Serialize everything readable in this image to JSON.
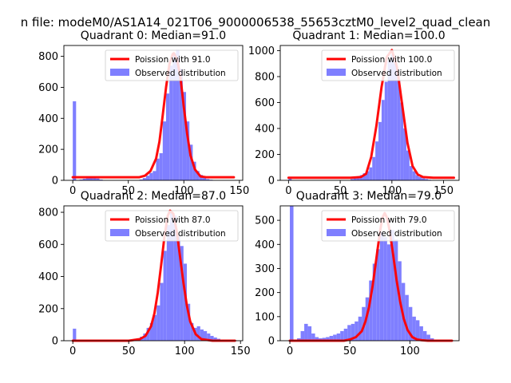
{
  "figure_title": "n file: modeM0/AS1A14_021T06_9000006538_55653cztM0_level2_quad_clean",
  "colors": {
    "fit": "#ff0000",
    "hist": "#7f7fff",
    "axis": "#000000"
  },
  "chart_data": [
    {
      "type": "bar",
      "title": "Quadrant 0: Median=91.0",
      "xlim": [
        -8,
        153
      ],
      "ylim": [
        0,
        870
      ],
      "xticks": [
        0,
        50,
        100,
        150
      ],
      "yticks": [
        0,
        200,
        400,
        600,
        800
      ],
      "legend": [
        "Poission with 91.0",
        "Observed distribution"
      ],
      "legend_position": "top-right",
      "bin_width": 3,
      "hist": {
        "x": [
          0,
          6,
          9,
          12,
          15,
          18,
          21,
          24,
          60,
          63,
          66,
          69,
          72,
          75,
          78,
          81,
          84,
          87,
          90,
          93,
          96,
          99,
          102,
          105,
          108,
          111,
          114,
          117,
          120,
          123
        ],
        "values": [
          510,
          5,
          10,
          18,
          22,
          20,
          12,
          5,
          5,
          15,
          30,
          48,
          60,
          140,
          175,
          380,
          560,
          740,
          820,
          840,
          720,
          570,
          380,
          230,
          120,
          60,
          35,
          18,
          8,
          4
        ]
      },
      "fit": {
        "mu": 91,
        "x": [
          0,
          20,
          50,
          60,
          65,
          70,
          75,
          78,
          81,
          84,
          87,
          90,
          91,
          94,
          97,
          100,
          103,
          106,
          110,
          115,
          120,
          130,
          145
        ],
        "values": [
          20,
          20,
          20,
          20,
          30,
          60,
          140,
          250,
          420,
          600,
          750,
          815,
          820,
          780,
          660,
          470,
          300,
          160,
          70,
          25,
          20,
          20,
          20
        ]
      }
    },
    {
      "type": "bar",
      "title": "Quadrant 1: Median=100.0",
      "xlim": [
        -8,
        165
      ],
      "ylim": [
        0,
        1040
      ],
      "xticks": [
        0,
        50,
        100,
        150
      ],
      "yticks": [
        0,
        200,
        400,
        600,
        800,
        1000
      ],
      "legend": [
        "Poission with 100.0",
        "Observed distribution"
      ],
      "legend_position": "top-right",
      "bin_width": 3,
      "hist": {
        "x": [
          0,
          60,
          63,
          66,
          69,
          72,
          75,
          78,
          81,
          84,
          87,
          90,
          93,
          96,
          99,
          102,
          105,
          108,
          111,
          114,
          117,
          120,
          123,
          126,
          129,
          132,
          135
        ],
        "values": [
          20,
          10,
          18,
          30,
          40,
          55,
          70,
          100,
          180,
          300,
          450,
          620,
          760,
          920,
          970,
          900,
          780,
          600,
          400,
          230,
          110,
          70,
          40,
          25,
          15,
          10,
          5
        ]
      },
      "fit": {
        "mu": 100,
        "x": [
          0,
          60,
          70,
          75,
          80,
          85,
          90,
          95,
          100,
          105,
          110,
          115,
          120,
          125,
          130,
          140,
          160
        ],
        "values": [
          20,
          20,
          25,
          50,
          180,
          420,
          720,
          950,
          1005,
          870,
          580,
          290,
          110,
          45,
          25,
          20,
          20
        ]
      }
    },
    {
      "type": "bar",
      "title": "Quadrant 2: Median=87.0",
      "xlim": [
        -8,
        152
      ],
      "ylim": [
        0,
        840
      ],
      "xticks": [
        0,
        50,
        100,
        150
      ],
      "yticks": [
        0,
        200,
        400,
        600,
        800
      ],
      "legend": [
        "Poission with 87.0",
        "Observed distribution"
      ],
      "legend_position": "top-right",
      "bin_width": 3,
      "hist": {
        "x": [
          0,
          51,
          54,
          57,
          60,
          63,
          66,
          69,
          72,
          75,
          78,
          81,
          84,
          87,
          90,
          93,
          96,
          99,
          102,
          105,
          108,
          111,
          114,
          117,
          120,
          123,
          126,
          129,
          132
        ],
        "values": [
          75,
          5,
          10,
          15,
          25,
          45,
          80,
          110,
          160,
          220,
          360,
          560,
          720,
          800,
          780,
          650,
          590,
          480,
          230,
          110,
          80,
          90,
          70,
          60,
          45,
          30,
          20,
          12,
          5
        ]
      },
      "fit": {
        "mu": 87,
        "x": [
          0,
          50,
          60,
          65,
          70,
          73,
          76,
          79,
          82,
          85,
          87,
          90,
          93,
          96,
          99,
          102,
          105,
          110,
          115,
          125,
          145
        ],
        "values": [
          0,
          0,
          10,
          30,
          90,
          170,
          300,
          470,
          650,
          780,
          810,
          790,
          680,
          520,
          360,
          220,
          120,
          40,
          10,
          0,
          0
        ]
      }
    },
    {
      "type": "bar",
      "title": "Quadrant 3: Median=79.0",
      "xlim": [
        -8,
        141
      ],
      "ylim": [
        0,
        560
      ],
      "xticks": [
        0,
        50,
        100
      ],
      "yticks": [
        0,
        100,
        200,
        300,
        400,
        500
      ],
      "legend": [
        "Poission with 79.0",
        "Observed distribution"
      ],
      "legend_position": "top-right",
      "bin_width": 3,
      "hist": {
        "x": [
          0,
          6,
          9,
          12,
          15,
          18,
          21,
          24,
          27,
          30,
          33,
          36,
          39,
          42,
          45,
          48,
          51,
          54,
          57,
          60,
          63,
          66,
          69,
          72,
          75,
          78,
          81,
          84,
          87,
          90,
          93,
          96,
          99,
          102,
          105,
          108,
          111,
          114,
          117
        ],
        "values": [
          560,
          10,
          40,
          70,
          60,
          30,
          15,
          10,
          12,
          15,
          20,
          25,
          30,
          40,
          50,
          65,
          70,
          80,
          100,
          140,
          180,
          250,
          320,
          380,
          450,
          430,
          400,
          460,
          420,
          330,
          240,
          190,
          140,
          100,
          85,
          60,
          40,
          25,
          10
        ]
      },
      "fit": {
        "mu": 79,
        "x": [
          0,
          45,
          50,
          55,
          60,
          63,
          66,
          69,
          72,
          75,
          77,
          79,
          81,
          83,
          86,
          89,
          92,
          95,
          98,
          102,
          106,
          110,
          115,
          135
        ],
        "values": [
          0,
          0,
          5,
          15,
          40,
          80,
          140,
          230,
          340,
          450,
          510,
          530,
          510,
          460,
          360,
          250,
          160,
          90,
          45,
          15,
          5,
          2,
          0,
          0
        ]
      }
    }
  ]
}
